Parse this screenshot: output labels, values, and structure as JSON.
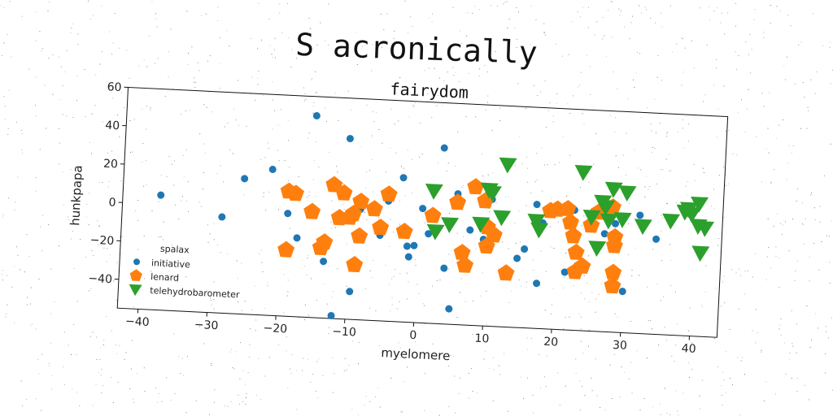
{
  "page": {
    "title": "S acronically"
  },
  "chart_data": {
    "type": "scatter",
    "title": "fairydom",
    "xlabel": "myelomere",
    "ylabel": "hunkpapa",
    "xlim": [
      -43,
      44
    ],
    "ylim": [
      -55,
      60
    ],
    "xticks": [
      -40,
      -30,
      -20,
      -10,
      0,
      10,
      20,
      30,
      40
    ],
    "yticks": [
      -40,
      -20,
      0,
      20,
      40,
      60
    ],
    "grid": false,
    "legend": {
      "title": "spalax",
      "position": "lower-left"
    },
    "series": [
      {
        "name": "initiative",
        "marker": "circle",
        "color": "#1f77b4",
        "points": [
          [
            -37.5,
            4.8
          ],
          [
            -28.5,
            -5.0
          ],
          [
            -25.5,
            15.5
          ],
          [
            -21.5,
            21.0
          ],
          [
            -19.0,
            -1.5
          ],
          [
            -17.5,
            -14.0
          ],
          [
            -15.5,
            50.0
          ],
          [
            -13.5,
            -25.5
          ],
          [
            -12.0,
            -53.5
          ],
          [
            -10.5,
            39.0
          ],
          [
            -9.5,
            -40.5
          ],
          [
            -8.5,
            2.5
          ],
          [
            -5.5,
            -10.5
          ],
          [
            -4.5,
            7.5
          ],
          [
            -2.5,
            20.0
          ],
          [
            -1.5,
            -15.5
          ],
          [
            -1.2,
            -21.0
          ],
          [
            -0.5,
            -15.0
          ],
          [
            0.5,
            4.5
          ],
          [
            1.5,
            -8.5
          ],
          [
            3.2,
            36.5
          ],
          [
            4.0,
            -26.0
          ],
          [
            5.0,
            -47.0
          ],
          [
            5.5,
            13.0
          ],
          [
            7.5,
            -5.5
          ],
          [
            9.5,
            -10.0
          ],
          [
            10.5,
            11.0
          ],
          [
            14.5,
            -19.0
          ],
          [
            15.5,
            -14.0
          ],
          [
            17.0,
            9.5
          ],
          [
            17.5,
            -31.5
          ],
          [
            18.0,
            0.0
          ],
          [
            19.5,
            6.5
          ],
          [
            21.5,
            -25.0
          ],
          [
            22.5,
            7.5
          ],
          [
            23.0,
            -14.0
          ],
          [
            27.0,
            -4.0
          ],
          [
            28.5,
            1.5
          ],
          [
            30.0,
            -33.5
          ],
          [
            32.0,
            6.5
          ],
          [
            34.5,
            -5.5
          ]
        ]
      },
      {
        "name": "lenard",
        "marker": "pentagon",
        "color": "#ff7f0e",
        "points": [
          [
            -19.0,
            10.0
          ],
          [
            -18.0,
            9.0
          ],
          [
            -19.0,
            -20.5
          ],
          [
            -15.5,
            0.0
          ],
          [
            -14.0,
            -18.5
          ],
          [
            -13.5,
            -15.5
          ],
          [
            -12.5,
            14.5
          ],
          [
            -11.5,
            -2.5
          ],
          [
            -11.0,
            10.5
          ],
          [
            -10.0,
            -2.0
          ],
          [
            -9.5,
            0.0
          ],
          [
            -9.0,
            -26.5
          ],
          [
            -8.5,
            6.5
          ],
          [
            -8.5,
            -11.5
          ],
          [
            -6.5,
            3.0
          ],
          [
            -5.5,
            -6.5
          ],
          [
            -4.5,
            11.0
          ],
          [
            -2.0,
            -8.0
          ],
          [
            2.0,
            1.0
          ],
          [
            5.5,
            8.5
          ],
          [
            6.5,
            -17.5
          ],
          [
            7.0,
            -24.0
          ],
          [
            8.0,
            17.0
          ],
          [
            9.5,
            10.0
          ],
          [
            10.0,
            -3.5
          ],
          [
            10.0,
            -13.5
          ],
          [
            11.0,
            -7.5
          ],
          [
            13.0,
            -27.0
          ],
          [
            19.0,
            6.5
          ],
          [
            20.0,
            7.5
          ],
          [
            21.5,
            8.0
          ],
          [
            22.0,
            1.0
          ],
          [
            22.5,
            -6.0
          ],
          [
            23.0,
            -14.5
          ],
          [
            23.0,
            -24.5
          ],
          [
            24.0,
            -21.5
          ],
          [
            25.0,
            0.0
          ],
          [
            26.0,
            7.0
          ],
          [
            28.0,
            10.0
          ],
          [
            28.5,
            -5.5
          ],
          [
            28.5,
            -10.0
          ],
          [
            28.5,
            -24.0
          ],
          [
            28.5,
            -31.0
          ]
        ]
      },
      {
        "name": "telehydrobarometer",
        "marker": "triangle-down",
        "color": "#2ca02c",
        "points": [
          [
            2.0,
            14.0
          ],
          [
            2.5,
            -7.0
          ],
          [
            4.5,
            -3.0
          ],
          [
            9.0,
            -2.0
          ],
          [
            10.0,
            16.0
          ],
          [
            10.5,
            14.5
          ],
          [
            12.0,
            2.0
          ],
          [
            12.5,
            29.5
          ],
          [
            17.0,
            1.0
          ],
          [
            17.5,
            -3.5
          ],
          [
            23.5,
            27.5
          ],
          [
            25.0,
            4.5
          ],
          [
            26.0,
            -11.5
          ],
          [
            26.5,
            12.5
          ],
          [
            27.0,
            10.0
          ],
          [
            27.5,
            3.0
          ],
          [
            28.0,
            19.5
          ],
          [
            29.5,
            4.0
          ],
          [
            30.0,
            18.0
          ],
          [
            32.5,
            1.0
          ],
          [
            36.5,
            4.5
          ],
          [
            38.5,
            9.5
          ],
          [
            39.0,
            11.0
          ],
          [
            39.5,
            8.5
          ],
          [
            40.5,
            14.0
          ],
          [
            40.5,
            2.5
          ],
          [
            41.0,
            -11.5
          ],
          [
            41.5,
            1.5
          ]
        ]
      }
    ]
  }
}
